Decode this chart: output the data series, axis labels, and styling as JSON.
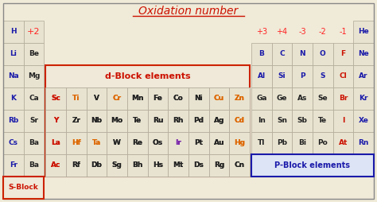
{
  "title": "Oxidation number",
  "bg_color": "#f0ead8",
  "rows": [
    {
      "row": 0,
      "cells": [
        {
          "text": "H",
          "col": 0,
          "color": "#1a1aaa",
          "bold": true
        },
        {
          "text": "+2",
          "col": 1,
          "color": "#ff2222",
          "bold": false,
          "fontsize": 8
        },
        {
          "text": "He",
          "col": 17,
          "color": "#1a1aaa",
          "bold": true
        }
      ]
    },
    {
      "row": 1,
      "cells": [
        {
          "text": "Li",
          "col": 0,
          "color": "#1a1aaa",
          "bold": true
        },
        {
          "text": "Be",
          "col": 1,
          "color": "#222222",
          "bold": true
        },
        {
          "text": "B",
          "col": 12,
          "color": "#1a1aaa",
          "bold": true
        },
        {
          "text": "C",
          "col": 13,
          "color": "#1a1aaa",
          "bold": true
        },
        {
          "text": "N",
          "col": 14,
          "color": "#1a1aaa",
          "bold": true
        },
        {
          "text": "O",
          "col": 15,
          "color": "#1a1aaa",
          "bold": true
        },
        {
          "text": "F",
          "col": 16,
          "color": "#cc1100",
          "bold": true
        },
        {
          "text": "Ne",
          "col": 17,
          "color": "#1a1aaa",
          "bold": true
        }
      ]
    },
    {
      "row": 2,
      "cells": [
        {
          "text": "Na",
          "col": 0,
          "color": "#1a1aaa",
          "bold": true
        },
        {
          "text": "Mg",
          "col": 1,
          "color": "#222222",
          "bold": true
        },
        {
          "text": "Al",
          "col": 12,
          "color": "#1a1aaa",
          "bold": true
        },
        {
          "text": "Si",
          "col": 13,
          "color": "#1a1aaa",
          "bold": true
        },
        {
          "text": "P",
          "col": 14,
          "color": "#1a1aaa",
          "bold": true
        },
        {
          "text": "S",
          "col": 15,
          "color": "#1a1aaa",
          "bold": true
        },
        {
          "text": "Cl",
          "col": 16,
          "color": "#cc1100",
          "bold": true
        },
        {
          "text": "Ar",
          "col": 17,
          "color": "#1a1aaa",
          "bold": true
        }
      ]
    },
    {
      "row": 3,
      "cells": [
        {
          "text": "K",
          "col": 0,
          "color": "#1a1aaa",
          "bold": true
        },
        {
          "text": "Ca",
          "col": 1,
          "color": "#222222",
          "bold": true
        },
        {
          "text": "Sc",
          "col": 2,
          "color": "#cc1100",
          "bold": true
        },
        {
          "text": "Ti",
          "col": 3,
          "color": "#dd6600",
          "bold": true
        },
        {
          "text": "V",
          "col": 4,
          "color": "#222222",
          "bold": true
        },
        {
          "text": "Cr",
          "col": 5,
          "color": "#dd6600",
          "bold": true
        },
        {
          "text": "Mn",
          "col": 6,
          "color": "#222222",
          "bold": true
        },
        {
          "text": "Fe",
          "col": 7,
          "color": "#222222",
          "bold": true
        },
        {
          "text": "Co",
          "col": 8,
          "color": "#222222",
          "bold": true
        },
        {
          "text": "Ni",
          "col": 9,
          "color": "#222222",
          "bold": true
        },
        {
          "text": "Cu",
          "col": 10,
          "color": "#dd6600",
          "bold": true
        },
        {
          "text": "Zn",
          "col": 11,
          "color": "#dd6600",
          "bold": true
        },
        {
          "text": "Ga",
          "col": 12,
          "color": "#222222",
          "bold": true
        },
        {
          "text": "Ge",
          "col": 13,
          "color": "#222222",
          "bold": true
        },
        {
          "text": "As",
          "col": 14,
          "color": "#222222",
          "bold": true
        },
        {
          "text": "Se",
          "col": 15,
          "color": "#222222",
          "bold": true
        },
        {
          "text": "Br",
          "col": 16,
          "color": "#cc1100",
          "bold": true
        },
        {
          "text": "Kr",
          "col": 17,
          "color": "#1a1aaa",
          "bold": true
        }
      ]
    },
    {
      "row": 4,
      "cells": [
        {
          "text": "Rb",
          "col": 0,
          "color": "#1a1aaa",
          "bold": true
        },
        {
          "text": "Sr",
          "col": 1,
          "color": "#222222",
          "bold": true
        },
        {
          "text": "Y",
          "col": 2,
          "color": "#cc1100",
          "bold": true
        },
        {
          "text": "Zr",
          "col": 3,
          "color": "#222222",
          "bold": true
        },
        {
          "text": "Nb",
          "col": 4,
          "color": "#222222",
          "bold": true
        },
        {
          "text": "Mo",
          "col": 5,
          "color": "#222222",
          "bold": true
        },
        {
          "text": "Te",
          "col": 6,
          "color": "#222222",
          "bold": true
        },
        {
          "text": "Ru",
          "col": 7,
          "color": "#222222",
          "bold": true
        },
        {
          "text": "Rh",
          "col": 8,
          "color": "#222222",
          "bold": true
        },
        {
          "text": "Pd",
          "col": 9,
          "color": "#222222",
          "bold": true
        },
        {
          "text": "Ag",
          "col": 10,
          "color": "#222222",
          "bold": true
        },
        {
          "text": "Cd",
          "col": 11,
          "color": "#dd6600",
          "bold": true
        },
        {
          "text": "In",
          "col": 12,
          "color": "#222222",
          "bold": true
        },
        {
          "text": "Sn",
          "col": 13,
          "color": "#222222",
          "bold": true
        },
        {
          "text": "Sb",
          "col": 14,
          "color": "#222222",
          "bold": true
        },
        {
          "text": "Te",
          "col": 15,
          "color": "#222222",
          "bold": true
        },
        {
          "text": "I",
          "col": 16,
          "color": "#cc1100",
          "bold": true
        },
        {
          "text": "Xe",
          "col": 17,
          "color": "#1a1aaa",
          "bold": true
        }
      ]
    },
    {
      "row": 5,
      "cells": [
        {
          "text": "Cs",
          "col": 0,
          "color": "#1a1aaa",
          "bold": true
        },
        {
          "text": "Ba",
          "col": 1,
          "color": "#222222",
          "bold": true
        },
        {
          "text": "La",
          "col": 2,
          "color": "#cc1100",
          "bold": true
        },
        {
          "text": "Hf",
          "col": 3,
          "color": "#dd6600",
          "bold": true
        },
        {
          "text": "Ta",
          "col": 4,
          "color": "#dd6600",
          "bold": true
        },
        {
          "text": "W",
          "col": 5,
          "color": "#222222",
          "bold": true
        },
        {
          "text": "Re",
          "col": 6,
          "color": "#222222",
          "bold": true
        },
        {
          "text": "Os",
          "col": 7,
          "color": "#222222",
          "bold": true
        },
        {
          "text": "Ir",
          "col": 8,
          "color": "#7722aa",
          "bold": true
        },
        {
          "text": "Pt",
          "col": 9,
          "color": "#222222",
          "bold": true
        },
        {
          "text": "Au",
          "col": 10,
          "color": "#222222",
          "bold": true
        },
        {
          "text": "Hg",
          "col": 11,
          "color": "#dd6600",
          "bold": true
        },
        {
          "text": "Tl",
          "col": 12,
          "color": "#222222",
          "bold": true
        },
        {
          "text": "Pb",
          "col": 13,
          "color": "#222222",
          "bold": true
        },
        {
          "text": "Bi",
          "col": 14,
          "color": "#222222",
          "bold": true
        },
        {
          "text": "Po",
          "col": 15,
          "color": "#222222",
          "bold": true
        },
        {
          "text": "At",
          "col": 16,
          "color": "#cc1100",
          "bold": true
        },
        {
          "text": "Rn",
          "col": 17,
          "color": "#1a1aaa",
          "bold": true
        }
      ]
    },
    {
      "row": 6,
      "cells": [
        {
          "text": "Fr",
          "col": 0,
          "color": "#1a1aaa",
          "bold": true
        },
        {
          "text": "Ba",
          "col": 1,
          "color": "#222222",
          "bold": true
        },
        {
          "text": "Ac",
          "col": 2,
          "color": "#cc1100",
          "bold": true
        },
        {
          "text": "Rf",
          "col": 3,
          "color": "#222222",
          "bold": true
        },
        {
          "text": "Db",
          "col": 4,
          "color": "#222222",
          "bold": true
        },
        {
          "text": "Sg",
          "col": 5,
          "color": "#222222",
          "bold": true
        },
        {
          "text": "Bh",
          "col": 6,
          "color": "#222222",
          "bold": true
        },
        {
          "text": "Hs",
          "col": 7,
          "color": "#222222",
          "bold": true
        },
        {
          "text": "Mt",
          "col": 8,
          "color": "#222222",
          "bold": true
        },
        {
          "text": "Ds",
          "col": 9,
          "color": "#222222",
          "bold": true
        },
        {
          "text": "Rg",
          "col": 10,
          "color": "#222222",
          "bold": true
        },
        {
          "text": "Cn",
          "col": 11,
          "color": "#222222",
          "bold": true
        }
      ]
    }
  ],
  "header_nums": [
    {
      "text": "+3",
      "col": 12,
      "color": "#ff2222"
    },
    {
      "text": "+4",
      "col": 13,
      "color": "#ff2222"
    },
    {
      "text": "-3",
      "col": 14,
      "color": "#ff2222"
    },
    {
      "text": "-2",
      "col": 15,
      "color": "#ff2222"
    },
    {
      "text": "-1",
      "col": 16,
      "color": "#ff2222"
    }
  ],
  "dblock_label": "d-Block elements",
  "dblock_color": "#cc1100",
  "dblock_border": "#cc2200",
  "pblock_label": "P-Block elements",
  "pblock_color": "#1a1aaa",
  "pblock_border": "#1a1aaa",
  "sblock_label": "S-Block",
  "sblock_color": "#cc1100",
  "sblock_border": "#cc2200"
}
